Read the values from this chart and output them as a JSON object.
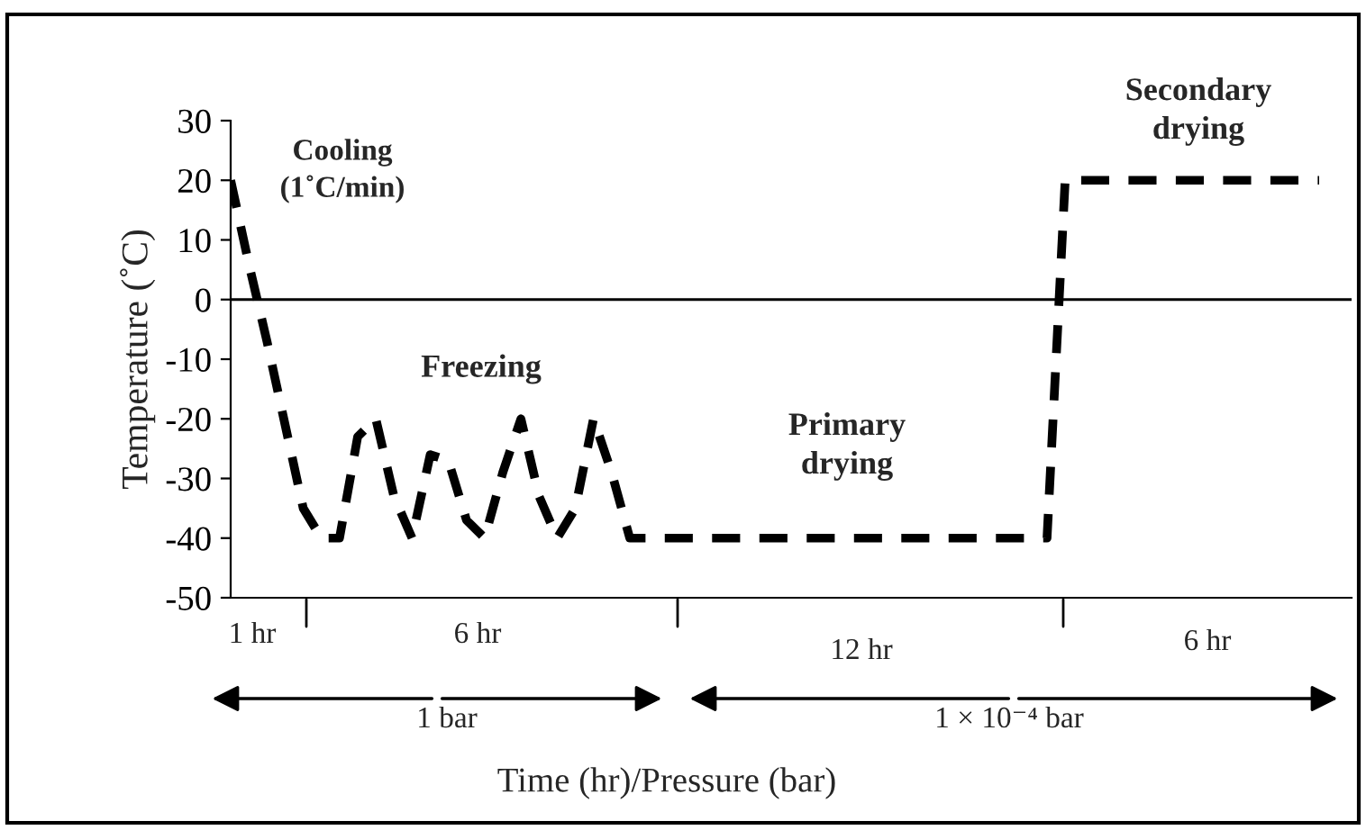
{
  "chart_data": {
    "type": "line",
    "xlabel": "Time (hr)/Pressure (bar)",
    "ylabel": "Temperature (˚C)",
    "categories": [
      null,
      null,
      null,
      null,
      null,
      null,
      null,
      null,
      null,
      null,
      null,
      null,
      null,
      null,
      null,
      null,
      null,
      null,
      null,
      null,
      null,
      null,
      null,
      null,
      null,
      null,
      null,
      null,
      null,
      null,
      null,
      null,
      null,
      null,
      null,
      null,
      null,
      null,
      null,
      null,
      null,
      null,
      null,
      null,
      null,
      null,
      null,
      null,
      null,
      null,
      null,
      null,
      null,
      null,
      null,
      null,
      null,
      null,
      null,
      null,
      null
    ],
    "series": [
      {
        "color": "#000000",
        "values": [
          20,
          6,
          -7,
          -21,
          -35,
          -40,
          -40,
          -23,
          -20,
          -33,
          -40,
          -26,
          -27,
          -37,
          -40,
          -29,
          -20,
          -33,
          -40,
          -35,
          -20,
          -29,
          -40,
          -40,
          -40,
          -40,
          -40,
          -40,
          -40,
          -40,
          -40,
          -40,
          -40,
          -40,
          -40,
          -40,
          -40,
          -40,
          -40,
          -40,
          -40,
          -40,
          -40,
          -40,
          -40,
          -40,
          20,
          20,
          20,
          20,
          20,
          20,
          20,
          20,
          20,
          20,
          20,
          20,
          20,
          20,
          20
        ]
      }
    ],
    "ylim": [
      -50,
      30
    ],
    "yticks": [
      -50,
      -40,
      -30,
      -20,
      -10,
      0,
      10,
      20,
      30
    ],
    "ref_lines": [
      {
        "axis": "y",
        "value": 0,
        "color": "#000000"
      }
    ],
    "annotations": [
      "Cooling\n(1˚C/min)",
      "Freezing",
      "Primary\ndrying",
      "Secondary\ndrying",
      "1 hr",
      "6 hr",
      "12 hr",
      "6 hr",
      "1 bar",
      "1 × 10⁻⁴ bar"
    ],
    "line_style": "dashed",
    "marker": "none",
    "grid": false,
    "legend": false
  }
}
